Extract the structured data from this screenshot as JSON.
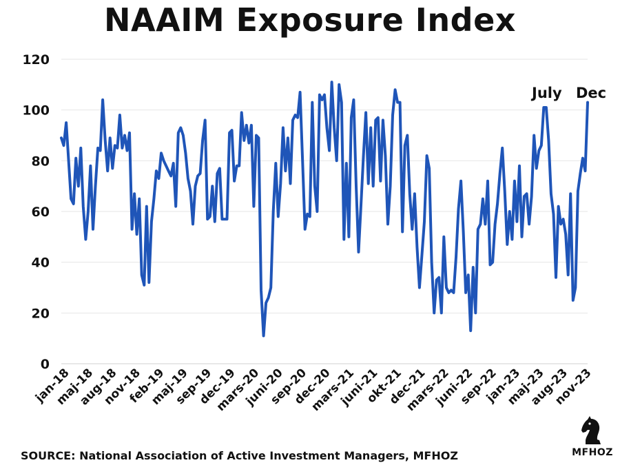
{
  "title": "NAAIM Exposure Index",
  "source": "SOURCE: National Association of Active Investment Managers, MFHOZ",
  "logo_text": "MFHOZ",
  "line_color": "#1f55b8",
  "chart_data": {
    "type": "line",
    "title": "NAAIM Exposure Index",
    "xlabel": "",
    "ylabel": "",
    "ylim": [
      0,
      120
    ],
    "yticks": [
      0,
      20,
      40,
      60,
      80,
      100,
      120
    ],
    "grid": true,
    "legend": "none",
    "x_range": [
      "2018-01",
      "2023-12"
    ],
    "xtick_labels": [
      "jan-18",
      "maj-18",
      "aug-18",
      "nov-18",
      "feb-19",
      "maj-19",
      "sep-19",
      "dec-19",
      "mars-20",
      "juni-20",
      "sep-20",
      "dec-20",
      "mars-21",
      "juni-21",
      "okt-21",
      "dec-21",
      "mars-22",
      "juni-22",
      "sep-22",
      "jan-23",
      "maj-23",
      "aug-23",
      "nov-23"
    ],
    "annotations": [
      "July",
      "Dec"
    ],
    "series": [
      {
        "values": [
          89,
          86,
          95,
          80,
          65,
          63,
          81,
          70,
          85,
          62,
          49,
          60,
          78,
          53,
          70,
          85,
          84,
          104,
          88,
          76,
          89,
          77,
          86,
          85,
          98,
          85,
          90,
          84,
          91,
          53,
          67,
          51,
          65,
          35,
          31,
          62,
          32,
          56,
          65,
          76,
          73,
          83,
          80,
          78,
          76,
          74,
          79,
          62,
          91,
          93,
          90,
          83,
          73,
          68,
          55,
          70,
          74,
          75,
          88,
          96,
          57,
          58,
          70,
          56,
          75,
          77,
          57,
          57,
          57,
          91,
          92,
          72,
          78,
          78,
          99,
          88,
          94,
          87,
          94,
          62,
          90,
          89,
          29,
          11,
          24,
          26,
          30,
          60,
          79,
          58,
          71,
          93,
          76,
          89,
          71,
          96,
          98,
          97,
          107,
          80,
          53,
          59,
          58,
          103,
          70,
          60,
          106,
          104,
          106,
          93,
          84,
          111,
          93,
          80,
          110,
          103,
          49,
          79,
          50,
          97,
          104,
          70,
          44,
          63,
          82,
          99,
          71,
          93,
          70,
          96,
          97,
          72,
          96,
          82,
          55,
          70,
          98,
          108,
          103,
          103,
          52,
          86,
          90,
          67,
          53,
          67,
          46,
          30,
          43,
          56,
          82,
          77,
          40,
          20,
          33,
          34,
          20,
          50,
          30,
          28,
          29,
          28,
          42,
          61,
          72,
          52,
          28,
          35,
          13,
          38,
          20,
          53,
          55,
          65,
          55,
          72,
          39,
          40,
          55,
          63,
          75,
          85,
          68,
          47,
          60,
          49,
          72,
          56,
          78,
          50,
          66,
          67,
          55,
          66,
          90,
          77,
          84,
          86,
          101,
          101,
          88,
          67,
          59,
          34,
          62,
          55,
          57,
          51,
          35,
          67,
          25,
          30,
          68,
          75,
          81,
          76,
          103
        ]
      }
    ]
  }
}
